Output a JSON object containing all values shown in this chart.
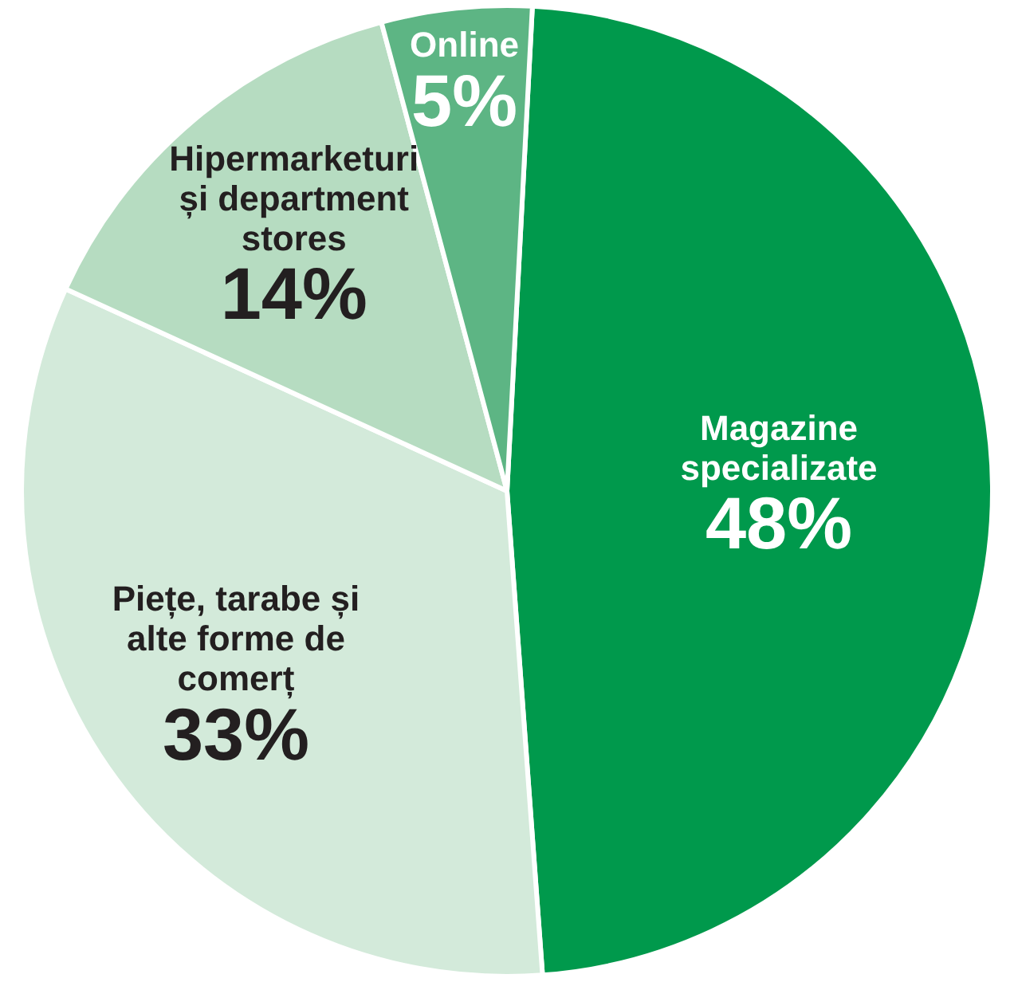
{
  "chart_data": {
    "type": "pie",
    "categories": [
      "Magazine specializate",
      "Piețe, tarabe și alte forme de comerț",
      "Hipermarketuri și department stores",
      "Online"
    ],
    "values": [
      48,
      33,
      14,
      5
    ],
    "colors": [
      "#00994c",
      "#d3eada",
      "#b6dcc1",
      "#5db584"
    ],
    "value_labels": [
      "48%",
      "33%",
      "14%",
      "5%"
    ]
  }
}
